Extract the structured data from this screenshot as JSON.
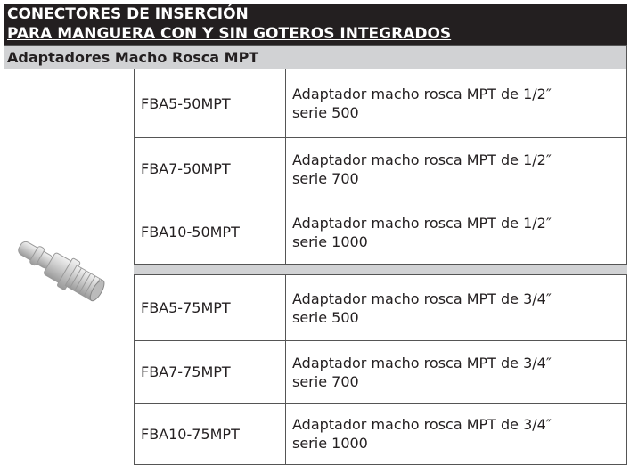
{
  "header": {
    "title_lines": [
      "CONECTORES DE INSERCIÓN",
      "PARA MANGUERA CON Y SIN GOTEROS INTEGRADOS"
    ]
  },
  "section": {
    "title": "Adaptadores Macho Rosca MPT"
  },
  "table": {
    "groups": [
      {
        "rows": [
          {
            "code": "FBA5-50MPT",
            "description": [
              "Adaptador macho rosca MPT de 1/2″",
              "serie 500"
            ]
          },
          {
            "code": "FBA7-50MPT",
            "description": [
              "Adaptador macho rosca MPT de 1/2″",
              "serie 700"
            ]
          },
          {
            "code": "FBA10-50MPT",
            "description": [
              "Adaptador macho rosca MPT de 1/2″",
              "serie 1000"
            ]
          }
        ]
      },
      {
        "rows": [
          {
            "code": "FBA5-75MPT",
            "description": [
              "Adaptador macho rosca MPT de 3/4″",
              "serie 500"
            ]
          },
          {
            "code": "FBA7-75MPT",
            "description": [
              "Adaptador macho rosca MPT de 3/4″",
              "serie 700"
            ]
          },
          {
            "code": "FBA10-75MPT",
            "description": [
              "Adaptador macho rosca MPT de 3/4″",
              "serie 1000"
            ]
          }
        ]
      }
    ]
  }
}
